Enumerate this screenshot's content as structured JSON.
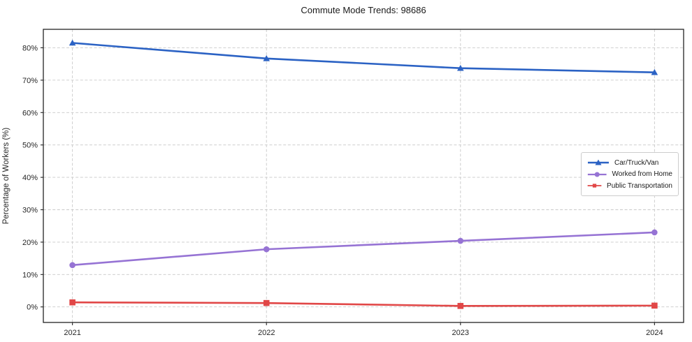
{
  "chart_data": {
    "type": "line",
    "title": "Commute Mode Trends: 98686",
    "xlabel": "",
    "ylabel": "Percentage of Workers (%)",
    "x": [
      2021,
      2022,
      2023,
      2024
    ],
    "x_tick_labels": [
      "2021",
      "2022",
      "2023",
      "2024"
    ],
    "y_ticks": [
      0,
      10,
      20,
      30,
      40,
      50,
      60,
      70,
      80
    ],
    "y_tick_suffix": "%",
    "xlim": [
      2020.85,
      2024.15
    ],
    "ylim": [
      -4.8,
      85.7
    ],
    "grid": true,
    "grid_style": "dashed",
    "legend_position": "center-right",
    "series": [
      {
        "name": "Car/Truck/Van",
        "color": "#2b62c4",
        "marker": "triangle",
        "values": [
          81.5,
          76.7,
          73.7,
          72.4
        ]
      },
      {
        "name": "Worked from Home",
        "color": "#9673d4",
        "marker": "circle",
        "values": [
          12.9,
          17.8,
          20.4,
          23.0
        ]
      },
      {
        "name": "Public Transportation",
        "color": "#e14747",
        "marker": "square",
        "values": [
          1.4,
          1.2,
          0.3,
          0.4
        ]
      }
    ]
  }
}
